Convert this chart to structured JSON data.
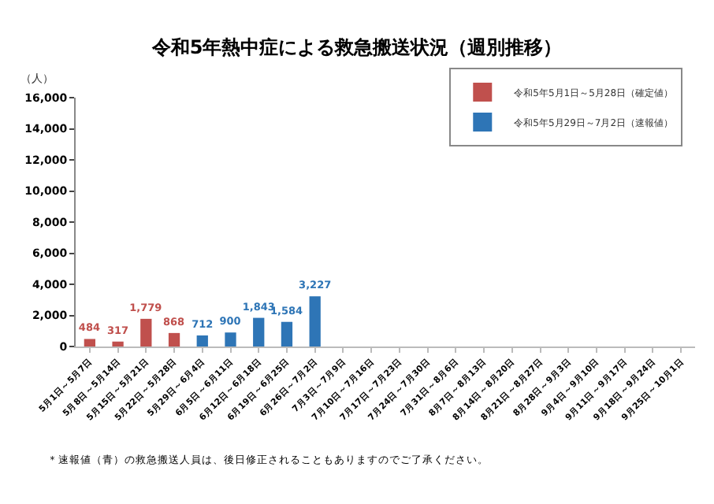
{
  "chart_data": {
    "type": "bar",
    "title": "令和5年熱中症による救急搬送状況（週別推移）",
    "ylabel": "（人）",
    "categories": [
      "5月1日～5月7日",
      "5月8日～5月14日",
      "5月15日～5月21日",
      "5月22日～5月28日",
      "5月29日～6月4日",
      "6月5日～6月11日",
      "6月12日～6月18日",
      "6月19日～6月25日",
      "6月26日～7月2日",
      "7月3日～7月9日",
      "7月10日～7月16日",
      "7月17日～7月23日",
      "7月24日～7月30日",
      "7月31日～8月6日",
      "8月7日～8月13日",
      "8月14日～8月20日",
      "8月21日～8月27日",
      "8月28日～9月3日",
      "9月4日～9月10日",
      "9月11日～9月17日",
      "9月18日～9月24日",
      "9月25日～10月1日"
    ],
    "series": [
      {
        "name": "令和5年5月1日～5月28日（確定値）",
        "color": "#c0504d",
        "values": [
          484,
          317,
          1779,
          868,
          null,
          null,
          null,
          null,
          null,
          null,
          null,
          null,
          null,
          null,
          null,
          null,
          null,
          null,
          null,
          null,
          null,
          null
        ],
        "value_labels": [
          "484",
          "317",
          "1,779",
          "868",
          null,
          null,
          null,
          null,
          null,
          null,
          null,
          null,
          null,
          null,
          null,
          null,
          null,
          null,
          null,
          null,
          null,
          null
        ]
      },
      {
        "name": "令和5年5月29日～7月2日（速報値）",
        "color": "#2e75b6",
        "values": [
          null,
          null,
          null,
          null,
          712,
          900,
          1843,
          1584,
          3227,
          null,
          null,
          null,
          null,
          null,
          null,
          null,
          null,
          null,
          null,
          null,
          null,
          null
        ],
        "value_labels": [
          null,
          null,
          null,
          null,
          "712",
          "900",
          "1,843",
          "1,584",
          "3,227",
          null,
          null,
          null,
          null,
          null,
          null,
          null,
          null,
          null,
          null,
          null,
          null,
          null
        ]
      }
    ],
    "ylim": [
      0,
      16000
    ],
    "yticks": [
      {
        "value": 0,
        "label": "0"
      },
      {
        "value": 2000,
        "label": "2,000"
      },
      {
        "value": 4000,
        "label": "4,000"
      },
      {
        "value": 6000,
        "label": "6,000"
      },
      {
        "value": 8000,
        "label": "8,000"
      },
      {
        "value": 10000,
        "label": "10,000"
      },
      {
        "value": 12000,
        "label": "12,000"
      },
      {
        "value": 14000,
        "label": "14,000"
      },
      {
        "value": 16000,
        "label": "16,000"
      }
    ],
    "grid": false,
    "legend": "top right",
    "annotations": [
      "＊速報値（青）の救急搬送人員は、後日修正されることもありますのでご了承ください。"
    ]
  }
}
